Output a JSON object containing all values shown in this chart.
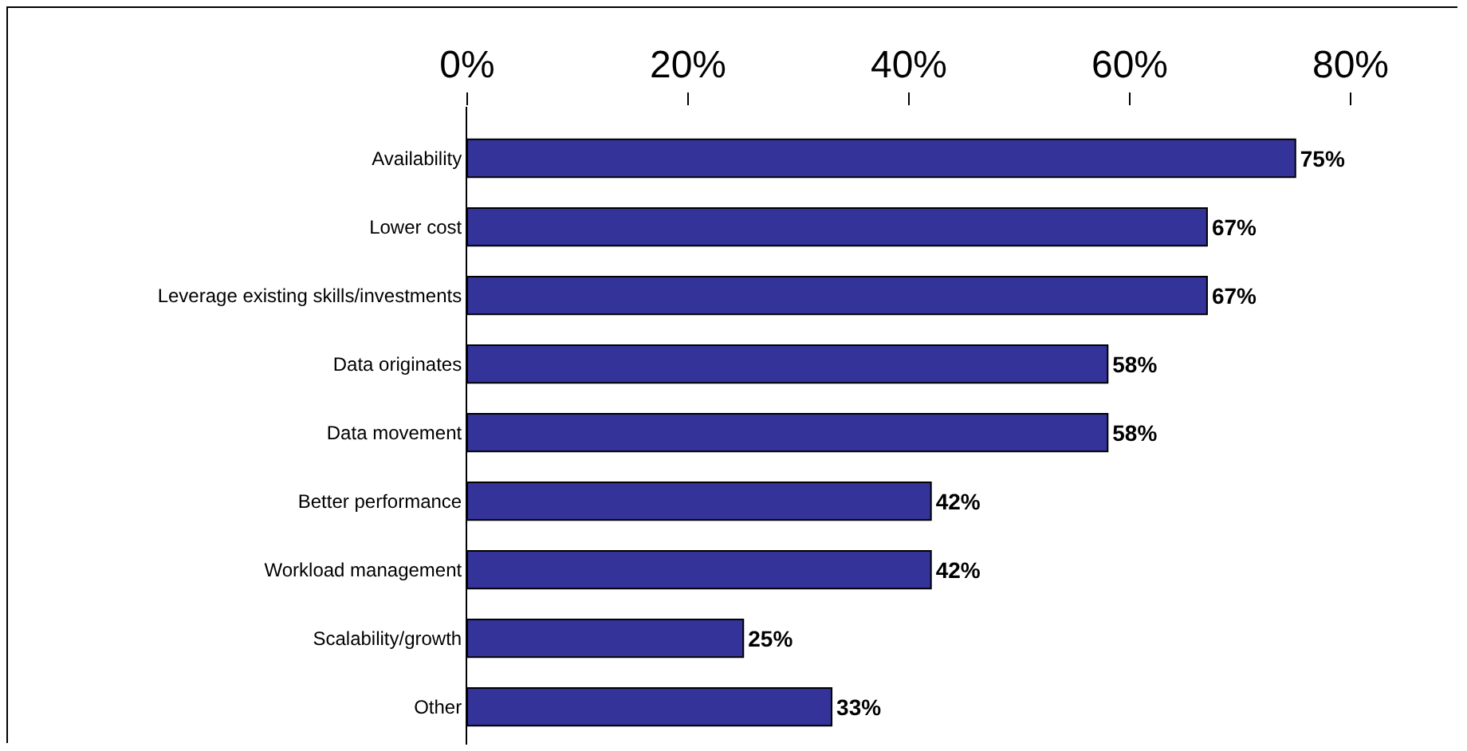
{
  "chart_data": {
    "type": "bar",
    "orientation": "horizontal",
    "categories": [
      "Availability",
      "Lower cost",
      "Leverage existing skills/investments",
      "Data originates",
      "Data movement",
      "Better performance",
      "Workload management",
      "Scalability/growth",
      "Other"
    ],
    "values": [
      75,
      67,
      67,
      58,
      58,
      42,
      42,
      25,
      33
    ],
    "value_labels": [
      "75%",
      "67%",
      "67%",
      "58%",
      "58%",
      "42%",
      "42%",
      "25%",
      "33%"
    ],
    "color": "#333399",
    "xlim": [
      0,
      80
    ],
    "xticks": [
      {
        "value": 0,
        "label": "0%"
      },
      {
        "value": 20,
        "label": "20%"
      },
      {
        "value": 40,
        "label": "40%"
      },
      {
        "value": 60,
        "label": "60%"
      },
      {
        "value": 80,
        "label": "80%"
      }
    ],
    "grid": false
  }
}
